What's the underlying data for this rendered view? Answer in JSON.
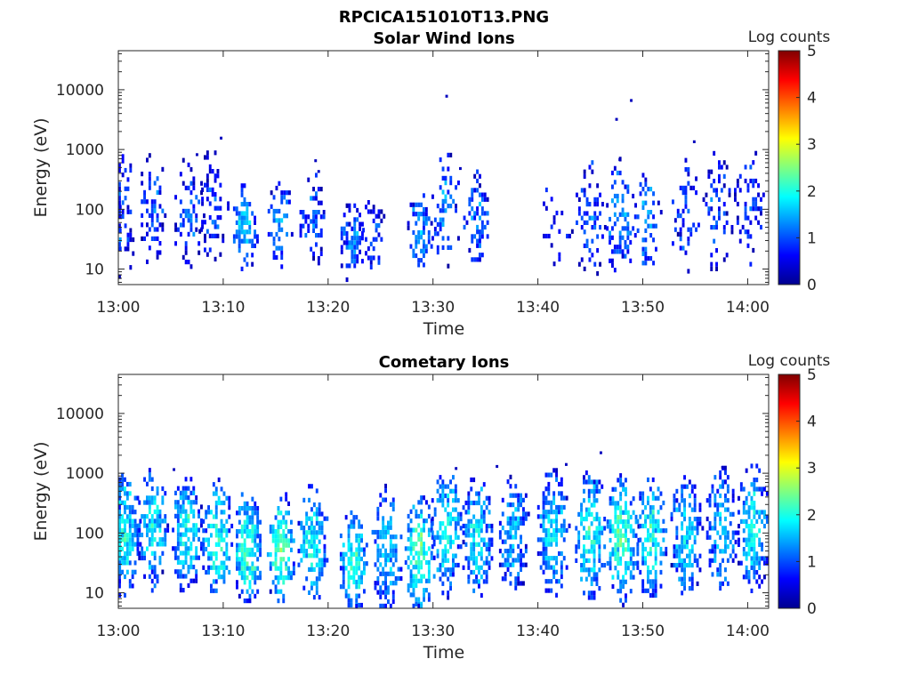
{
  "figure": {
    "title": "RPCICA151010T13.PNG"
  },
  "chart_data": [
    {
      "type": "heatmap",
      "title": "Solar Wind Ions",
      "xlabel": "Time",
      "ylabel": "Energy (eV)",
      "x_ticks": [
        "13:00",
        "13:10",
        "13:20",
        "13:30",
        "13:40",
        "13:50",
        "14:00"
      ],
      "y_ticks": [
        "10",
        "100",
        "1000",
        "10000"
      ],
      "y_scale": "log",
      "ylim": [
        5.5,
        45000
      ],
      "xlim_minutes": [
        0,
        62
      ],
      "colorbar": {
        "label": "Log counts",
        "range": [
          0,
          5
        ],
        "ticks": [
          "0",
          "1",
          "2",
          "3",
          "4",
          "5"
        ]
      },
      "bursts": [
        {
          "t": 0.2,
          "e": 90,
          "intensity": 0.9,
          "spread": 0.5,
          "density": 0.25
        },
        {
          "t": 3.2,
          "e": 110,
          "intensity": 0.9,
          "spread": 0.45,
          "density": 0.3
        },
        {
          "t": 6.6,
          "e": 90,
          "intensity": 1.0,
          "spread": 0.4,
          "density": 0.3
        },
        {
          "t": 8.9,
          "e": 120,
          "intensity": 0.9,
          "spread": 0.4,
          "density": 0.3
        },
        {
          "t": 12.0,
          "e": 55,
          "intensity": 1.6,
          "spread": 0.25,
          "density": 0.55
        },
        {
          "t": 15.3,
          "e": 60,
          "intensity": 1.3,
          "spread": 0.25,
          "density": 0.6
        },
        {
          "t": 18.4,
          "e": 70,
          "intensity": 1.0,
          "spread": 0.3,
          "density": 0.4
        },
        {
          "t": 22.2,
          "e": 30,
          "intensity": 1.2,
          "spread": 0.2,
          "density": 0.7
        },
        {
          "t": 24.2,
          "e": 40,
          "intensity": 0.9,
          "spread": 0.15,
          "density": 0.35
        },
        {
          "t": 28.6,
          "e": 45,
          "intensity": 1.4,
          "spread": 0.25,
          "density": 0.55
        },
        {
          "t": 31.1,
          "e": 110,
          "intensity": 1.3,
          "spread": 0.4,
          "density": 0.35
        },
        {
          "t": 34.0,
          "e": 80,
          "intensity": 1.2,
          "spread": 0.3,
          "density": 0.45
        },
        {
          "t": 41.7,
          "e": 70,
          "intensity": 0.8,
          "spread": 0.4,
          "density": 0.15
        },
        {
          "t": 44.9,
          "e": 70,
          "intensity": 1.1,
          "spread": 0.45,
          "density": 0.3
        },
        {
          "t": 47.8,
          "e": 80,
          "intensity": 1.3,
          "spread": 0.45,
          "density": 0.4
        },
        {
          "t": 50.3,
          "e": 70,
          "intensity": 1.3,
          "spread": 0.3,
          "density": 0.45
        },
        {
          "t": 54.0,
          "e": 90,
          "intensity": 0.9,
          "spread": 0.4,
          "density": 0.3
        },
        {
          "t": 57.0,
          "e": 100,
          "intensity": 0.9,
          "spread": 0.45,
          "density": 0.3
        },
        {
          "t": 60.0,
          "e": 120,
          "intensity": 0.9,
          "spread": 0.45,
          "density": 0.3
        }
      ],
      "isolated_points": [
        {
          "t": 7.5,
          "e": 820,
          "v": 0.3
        },
        {
          "t": 9.8,
          "e": 1550,
          "v": 0.3
        },
        {
          "t": 18.8,
          "e": 650,
          "v": 0.3
        },
        {
          "t": 19.1,
          "e": 430,
          "v": 0.3
        },
        {
          "t": 31.3,
          "e": 7800,
          "v": 0.3
        },
        {
          "t": 47.5,
          "e": 3200,
          "v": 0.3
        },
        {
          "t": 48.9,
          "e": 6600,
          "v": 0.3
        },
        {
          "t": 54.9,
          "e": 1350,
          "v": 0.3
        },
        {
          "t": 47.8,
          "e": 680,
          "v": 0.3
        },
        {
          "t": 32.6,
          "e": 480,
          "v": 0.3
        }
      ]
    },
    {
      "type": "heatmap",
      "title": "Cometary Ions",
      "xlabel": "Time",
      "ylabel": "Energy (eV)",
      "x_ticks": [
        "13:00",
        "13:10",
        "13:20",
        "13:30",
        "13:40",
        "13:50",
        "14:00"
      ],
      "y_ticks": [
        "10",
        "100",
        "1000",
        "10000"
      ],
      "y_scale": "log",
      "ylim": [
        5.5,
        45000
      ],
      "xlim_minutes": [
        0,
        62
      ],
      "colorbar": {
        "label": "Log counts",
        "range": [
          0,
          5
        ],
        "ticks": [
          "0",
          "1",
          "2",
          "3",
          "4",
          "5"
        ]
      },
      "bursts": [
        {
          "t": 0.4,
          "e": 110,
          "intensity": 1.9,
          "spread": 0.5,
          "density": 0.75
        },
        {
          "t": 3.2,
          "e": 130,
          "intensity": 1.8,
          "spread": 0.45,
          "density": 0.7
        },
        {
          "t": 6.4,
          "e": 110,
          "intensity": 1.9,
          "spread": 0.45,
          "density": 0.7
        },
        {
          "t": 9.3,
          "e": 90,
          "intensity": 2.0,
          "spread": 0.45,
          "density": 0.7
        },
        {
          "t": 12.2,
          "e": 60,
          "intensity": 2.1,
          "spread": 0.4,
          "density": 0.75
        },
        {
          "t": 15.4,
          "e": 60,
          "intensity": 2.2,
          "spread": 0.4,
          "density": 0.75
        },
        {
          "t": 18.4,
          "e": 70,
          "intensity": 1.8,
          "spread": 0.45,
          "density": 0.65
        },
        {
          "t": 22.3,
          "e": 35,
          "intensity": 2.1,
          "spread": 0.35,
          "density": 0.75
        },
        {
          "t": 25.5,
          "e": 60,
          "intensity": 1.6,
          "spread": 0.5,
          "density": 0.6
        },
        {
          "t": 28.6,
          "e": 45,
          "intensity": 2.2,
          "spread": 0.45,
          "density": 0.75
        },
        {
          "t": 31.2,
          "e": 120,
          "intensity": 1.9,
          "spread": 0.5,
          "density": 0.65
        },
        {
          "t": 34.1,
          "e": 90,
          "intensity": 1.8,
          "spread": 0.45,
          "density": 0.65
        },
        {
          "t": 37.6,
          "e": 100,
          "intensity": 1.5,
          "spread": 0.45,
          "density": 0.6
        },
        {
          "t": 41.3,
          "e": 110,
          "intensity": 1.7,
          "spread": 0.5,
          "density": 0.65
        },
        {
          "t": 44.9,
          "e": 100,
          "intensity": 1.9,
          "spread": 0.5,
          "density": 0.7
        },
        {
          "t": 47.9,
          "e": 90,
          "intensity": 2.2,
          "spread": 0.5,
          "density": 0.75
        },
        {
          "t": 50.7,
          "e": 90,
          "intensity": 2.0,
          "spread": 0.45,
          "density": 0.7
        },
        {
          "t": 54.0,
          "e": 100,
          "intensity": 1.7,
          "spread": 0.5,
          "density": 0.65
        },
        {
          "t": 57.4,
          "e": 120,
          "intensity": 1.6,
          "spread": 0.5,
          "density": 0.6
        },
        {
          "t": 60.4,
          "e": 130,
          "intensity": 1.8,
          "spread": 0.5,
          "density": 0.7
        }
      ],
      "isolated_points": [
        {
          "t": 5.3,
          "e": 1150,
          "v": 0.3
        },
        {
          "t": 46.0,
          "e": 2200,
          "v": 0.3
        },
        {
          "t": 42.7,
          "e": 1400,
          "v": 0.3
        },
        {
          "t": 36.1,
          "e": 1300,
          "v": 0.3
        },
        {
          "t": 32.2,
          "e": 1200,
          "v": 0.3
        },
        {
          "t": 57.6,
          "e": 1250,
          "v": 0.3
        }
      ]
    }
  ]
}
